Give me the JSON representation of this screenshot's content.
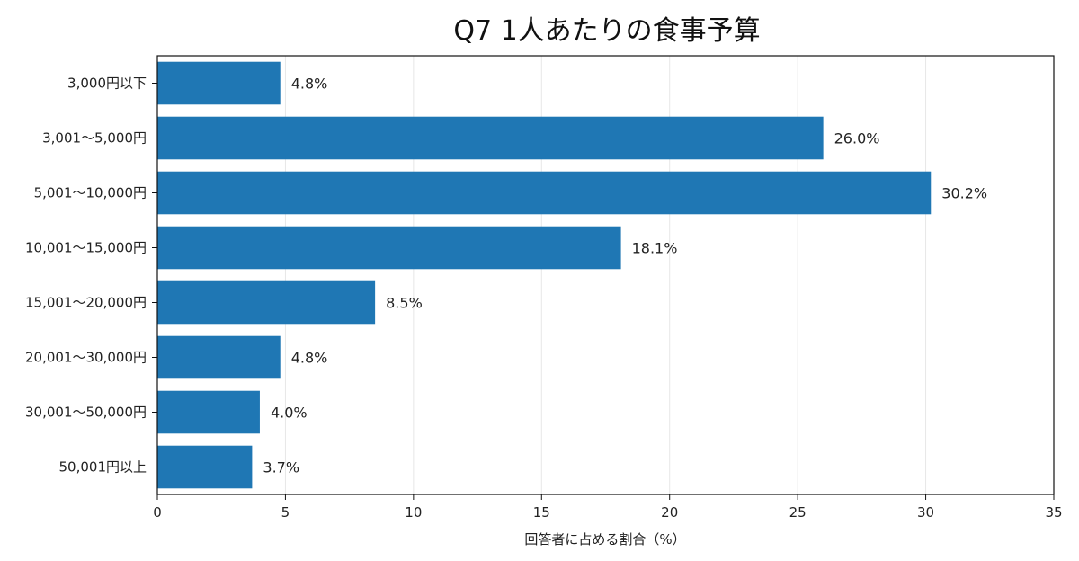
{
  "chart_data": {
    "type": "bar",
    "orientation": "horizontal",
    "title": "Q7 1人あたりの食事予算",
    "xlabel": "回答者に占める割合（%）",
    "ylabel": "",
    "categories": [
      "3,000円以下",
      "3,001〜5,000円",
      "5,001〜10,000円",
      "10,001〜15,000円",
      "15,001〜20,000円",
      "20,001〜30,000円",
      "30,001〜50,000円",
      "50,001円以上"
    ],
    "values": [
      4.8,
      26.0,
      30.2,
      18.1,
      8.5,
      4.8,
      4.0,
      3.7
    ],
    "data_labels": [
      "4.8%",
      "26.0%",
      "30.2%",
      "18.1%",
      "8.5%",
      "4.8%",
      "4.0%",
      "3.7%"
    ],
    "xlim": [
      0,
      35
    ],
    "xticks": [
      0,
      5,
      10,
      15,
      20,
      25,
      30,
      35
    ],
    "xtick_labels": [
      "0",
      "5",
      "10",
      "15",
      "20",
      "25",
      "30",
      "35"
    ],
    "grid": "vertical",
    "legend": "none",
    "bar_color": "#1f77b4"
  }
}
